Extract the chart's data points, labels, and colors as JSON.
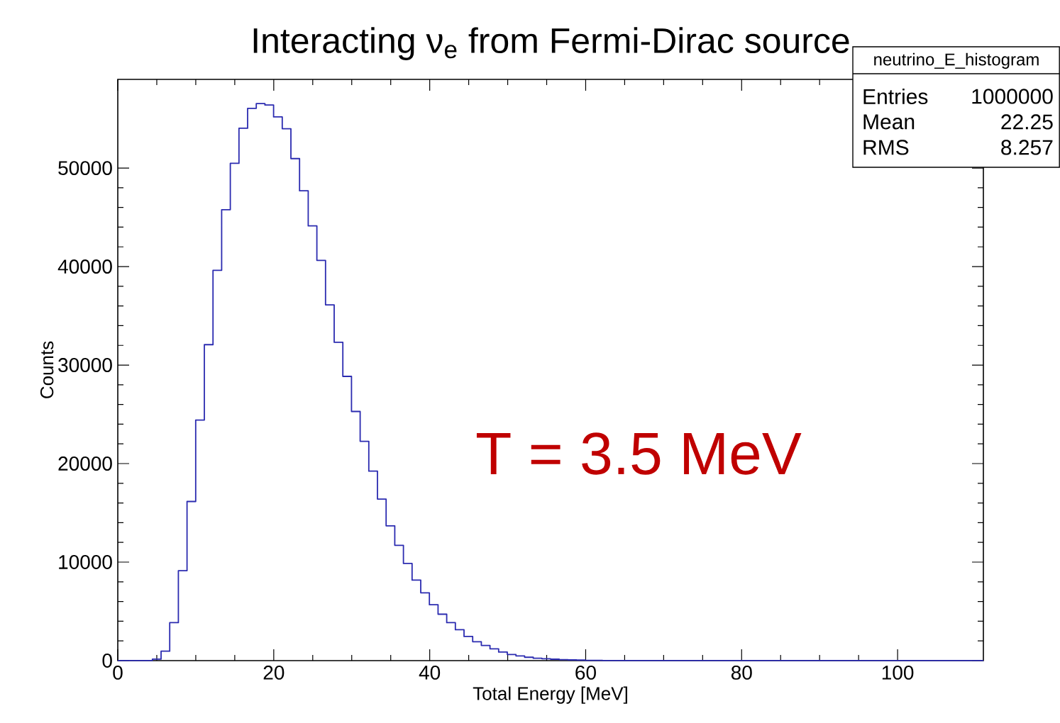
{
  "chart_data": {
    "type": "histogram",
    "title": "Interacting ν$_{e}$ from Fermi-Dirac source",
    "xlabel": "Total Energy [MeV]",
    "ylabel": "Counts",
    "color": "#2b2bb0",
    "bins": [
      0,
      1.11,
      2.22,
      3.33,
      4.44,
      5.55,
      6.66,
      7.77,
      8.88,
      9.99,
      11.1,
      12.21,
      13.32,
      14.43,
      15.54,
      16.65,
      17.76,
      18.87,
      19.98,
      21.09,
      22.2,
      23.31,
      24.42,
      25.53,
      26.64,
      27.75,
      28.86,
      29.97,
      31.08,
      32.19,
      33.3,
      34.41,
      35.52,
      36.63,
      37.74,
      38.85,
      39.96,
      41.07,
      42.18,
      43.29,
      44.4,
      45.51,
      46.62,
      47.73,
      48.84,
      49.95,
      51.06,
      52.17,
      53.28,
      54.39,
      55.5,
      56.61,
      57.72,
      58.83,
      59.94,
      61.05,
      62.16,
      63.27,
      64.38,
      65.49,
      66.6,
      67.71,
      68.82,
      69.93,
      71.04,
      72.15,
      73.26,
      74.37,
      75.48,
      76.59,
      77.7,
      78.81,
      79.92,
      81.03,
      82.14,
      83.25,
      84.36,
      85.47,
      86.58,
      87.69,
      88.8,
      89.91,
      91.02,
      92.13,
      93.24,
      94.35,
      95.46,
      96.57,
      97.68,
      98.79,
      99.9,
      101.01,
      102.12,
      103.23,
      104.34,
      105.45,
      106.56,
      107.67,
      108.78,
      109.89,
      111.0
    ],
    "values": [
      0,
      0,
      0,
      0,
      150,
      960,
      3850,
      9130,
      16150,
      24420,
      32070,
      39620,
      45770,
      50480,
      54040,
      56060,
      56540,
      56400,
      55190,
      53990,
      50960,
      47690,
      44130,
      40630,
      36110,
      32310,
      28850,
      25290,
      22260,
      19230,
      16400,
      13680,
      11700,
      9860,
      8170,
      6880,
      5670,
      4710,
      3850,
      3130,
      2450,
      1920,
      1540,
      1200,
      870,
      620,
      480,
      340,
      240,
      190,
      140,
      100,
      70,
      50,
      30,
      20,
      0,
      0,
      0,
      0,
      0,
      0,
      0,
      0,
      0,
      0,
      0,
      0,
      0,
      0,
      0,
      0,
      0,
      0,
      0,
      0,
      0,
      0,
      0,
      0,
      0,
      0,
      0,
      0,
      0,
      0,
      0,
      0,
      0,
      0,
      0,
      0,
      0,
      0,
      0,
      0,
      0,
      0,
      0,
      0
    ],
    "xlim": [
      0,
      111
    ],
    "ylim": [
      0,
      59000
    ],
    "xticks": [
      0,
      20,
      40,
      60,
      80,
      100
    ],
    "yticks": [
      0,
      10000,
      20000,
      30000,
      40000,
      50000
    ],
    "annotations": [
      "T = 3.5 MeV",
      "neutrino_E_histogram",
      "Entries",
      "1000000",
      "Mean",
      "22.25",
      "RMS",
      "8.257"
    ]
  }
}
